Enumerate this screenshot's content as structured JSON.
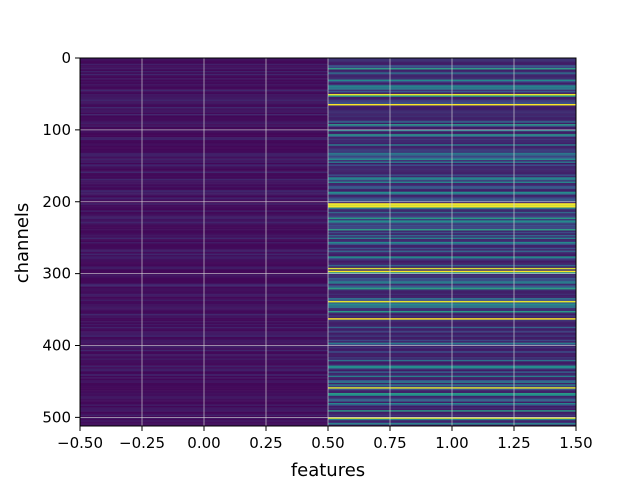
{
  "chart_data": {
    "type": "heatmap",
    "title": "",
    "xlabel": "features",
    "ylabel": "channels",
    "xlim": [
      -0.5,
      1.5
    ],
    "ylim": [
      512,
      0
    ],
    "grid": true,
    "colormap": "viridis",
    "columns": 2,
    "rows": 512,
    "row_step": 2,
    "x_ticks": [
      -0.5,
      -0.25,
      0.0,
      0.25,
      0.5,
      0.75,
      1.0,
      1.25,
      1.5
    ],
    "x_tick_labels": [
      "−0.50",
      "−0.25",
      "0.00",
      "0.25",
      "0.50",
      "0.75",
      "1.00",
      "1.25",
      "1.50"
    ],
    "y_ticks": [
      0,
      100,
      200,
      300,
      400,
      500
    ],
    "y_tick_labels": [
      "0",
      "100",
      "200",
      "300",
      "400",
      "500"
    ],
    "column_intensity_range": [
      [
        0.02,
        0.12
      ],
      [
        0.08,
        0.55
      ]
    ],
    "bright_rows_feature_1": [
      50,
      64,
      202,
      205,
      292,
      296,
      338,
      362,
      458,
      500
    ],
    "colors": {
      "low": "#440154",
      "mid": "#21918c",
      "high": "#fde725",
      "grid": "#d8d8d8"
    }
  }
}
